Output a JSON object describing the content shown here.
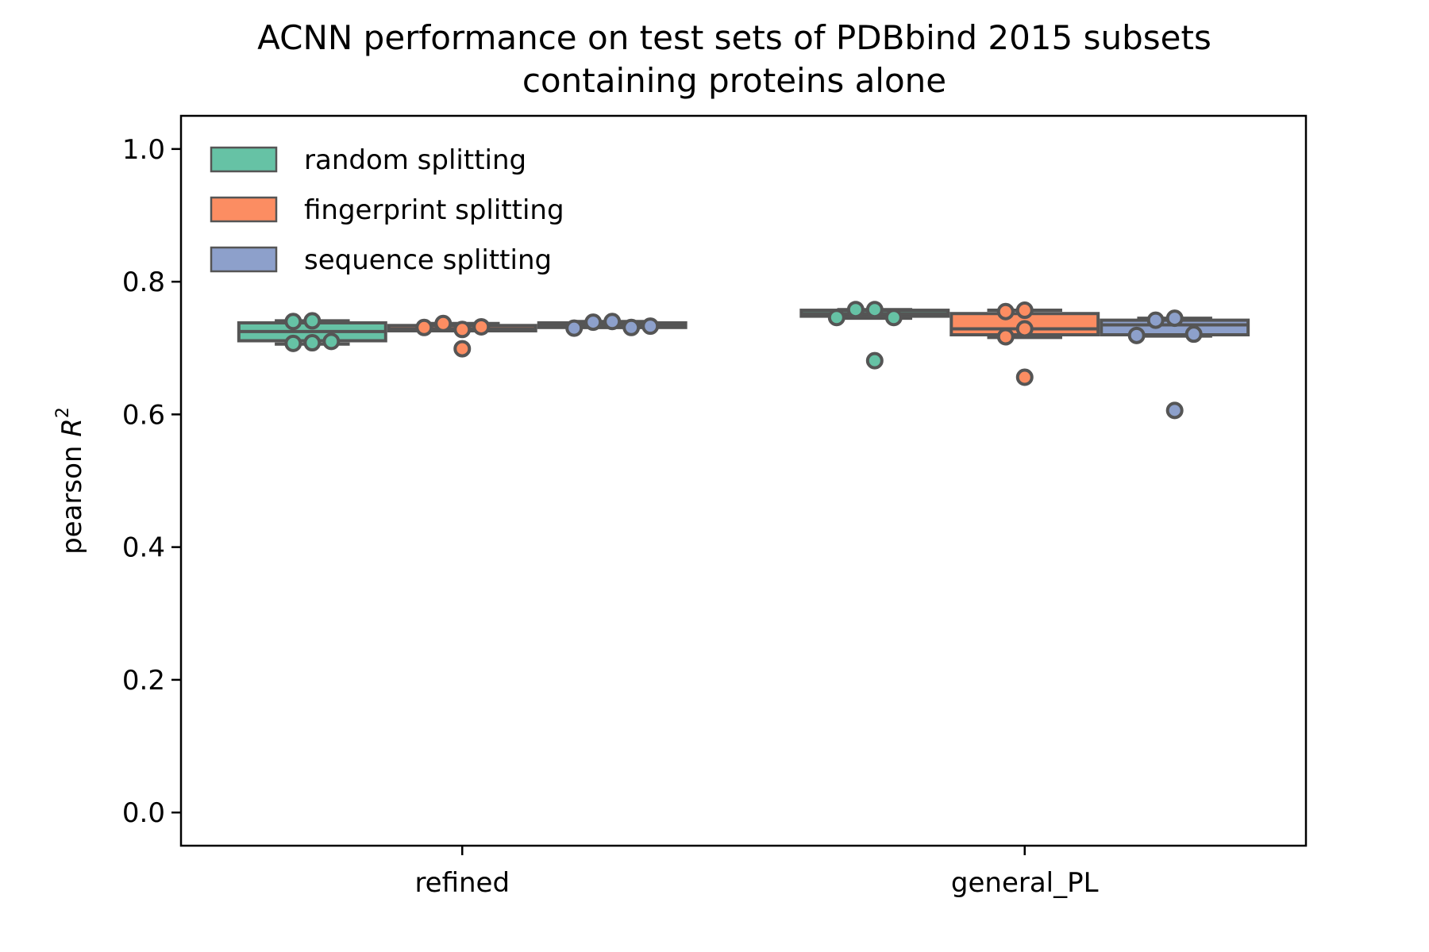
{
  "chart_data": {
    "type": "box",
    "title_lines": [
      "ACNN performance on test sets of PDBbind 2015 subsets",
      "containing proteins alone"
    ],
    "xlabel": "",
    "ylabel": "pearson",
    "ylabel_math": "R",
    "ylabel_sup": "2",
    "ylim": [
      -0.05,
      1.05
    ],
    "yticks": [
      0.0,
      0.2,
      0.4,
      0.6,
      0.8,
      1.0
    ],
    "ytick_labels": [
      "0.0",
      "0.2",
      "0.4",
      "0.6",
      "0.8",
      "1.0"
    ],
    "categories": [
      "refined",
      "general_PL"
    ],
    "legend_position": "upper-left",
    "grid": false,
    "series": [
      {
        "name": "random splitting",
        "color": "#66c2a5",
        "boxes": [
          {
            "q1": 0.711,
            "median": 0.725,
            "q3": 0.738,
            "whisker_low": 0.706,
            "whisker_high": 0.741,
            "points": [
              0.741,
              0.74,
              0.708,
              0.707,
              0.71
            ],
            "outliers": []
          },
          {
            "q1": 0.748,
            "median": 0.752,
            "q3": 0.757,
            "whisker_low": 0.745,
            "whisker_high": 0.758,
            "points": [
              0.758,
              0.758,
              0.746,
              0.746,
              0.681
            ],
            "outliers": [
              0.681
            ]
          }
        ]
      },
      {
        "name": "fingerprint splitting",
        "color": "#fc8d62",
        "boxes": [
          {
            "q1": 0.726,
            "median": 0.729,
            "q3": 0.734,
            "whisker_low": 0.726,
            "whisker_high": 0.737,
            "points": [
              0.728,
              0.737,
              0.732,
              0.731,
              0.699
            ],
            "outliers": [
              0.699
            ]
          },
          {
            "q1": 0.72,
            "median": 0.729,
            "q3": 0.752,
            "whisker_low": 0.716,
            "whisker_high": 0.757,
            "points": [
              0.757,
              0.755,
              0.729,
              0.717,
              0.656
            ],
            "outliers": [
              0.656
            ]
          }
        ]
      },
      {
        "name": "sequence splitting",
        "color": "#8da0cb",
        "boxes": [
          {
            "q1": 0.731,
            "median": 0.734,
            "q3": 0.738,
            "whisker_low": 0.731,
            "whisker_high": 0.74,
            "points": [
              0.74,
              0.739,
              0.731,
              0.73,
              0.733
            ],
            "outliers": []
          },
          {
            "q1": 0.72,
            "median": 0.735,
            "q3": 0.742,
            "whisker_low": 0.718,
            "whisker_high": 0.745,
            "points": [
              0.745,
              0.742,
              0.721,
              0.719,
              0.606
            ],
            "outliers": [
              0.606
            ]
          }
        ]
      }
    ]
  }
}
